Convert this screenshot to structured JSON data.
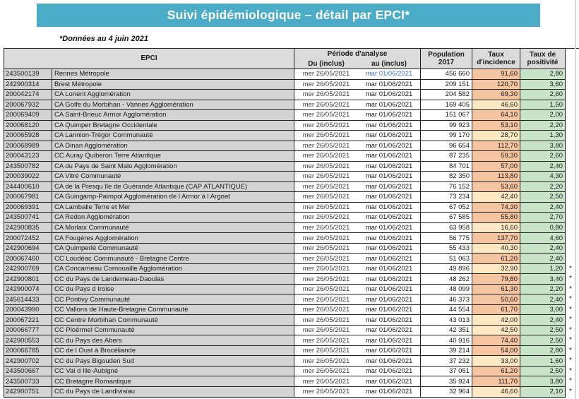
{
  "banner": {
    "title": "Suivi épidémiologique – détail par EPCI*"
  },
  "note": "*Données au 4 juin 2021",
  "colors": {
    "accent_teal": "#4AACC6",
    "header_bg": "#DBDBDB",
    "epci_cell_bg": "#D4D4D4",
    "positivite_green": "#C9E4C9",
    "date_blue": "#4472C4",
    "incidence": {
      "hi": "#F5C4A0",
      "lo": "#FCE9C4"
    }
  },
  "table": {
    "header": {
      "epci": "EPCI",
      "periode": "Période d'analyse",
      "du": "Du (inclus)",
      "au": "au (inclus)",
      "pop_l1": "Population",
      "pop_l2": "2017",
      "inc_l1": "Taux",
      "inc_l2": "d'incidence",
      "pos_l1": "Taux de",
      "pos_l2": "positivité"
    },
    "rows": [
      {
        "code": "243500139",
        "name": "Rennes Métropole",
        "du": "mer 26/05/2021",
        "au": "mar 01/06/2021",
        "pop": "456 660",
        "inc": "91,60",
        "pos": "2,80",
        "lvl": "hi",
        "star": "",
        "au_blue": true
      },
      {
        "code": "242900314",
        "name": "Brest Métropole",
        "du": "mer 26/05/2021",
        "au": "mar 01/06/2021",
        "pop": "209 151",
        "inc": "120,70",
        "pos": "3,60",
        "lvl": "hi",
        "star": ""
      },
      {
        "code": "200042174",
        "name": "CA Lorient Agglomération",
        "du": "mer 26/05/2021",
        "au": "mar 01/06/2021",
        "pop": "204 582",
        "inc": "69,30",
        "pos": "2,60",
        "lvl": "hi",
        "star": ""
      },
      {
        "code": "200067932",
        "name": "CA Golfe du Morbihan - Vannes Agglomération",
        "du": "mer 26/05/2021",
        "au": "mar 01/06/2021",
        "pop": "169 405",
        "inc": "46,60",
        "pos": "1,50",
        "lvl": "lo",
        "star": ""
      },
      {
        "code": "200069409",
        "name": "CA Saint-Brieuc Armor Agglomération",
        "du": "mer 26/05/2021",
        "au": "mar 01/06/2021",
        "pop": "151 067",
        "inc": "64,10",
        "pos": "2,00",
        "lvl": "hi",
        "star": ""
      },
      {
        "code": "200068120",
        "name": "CA Quimper Bretagne Occidentale",
        "du": "mer 26/05/2021",
        "au": "mar 01/06/2021",
        "pop": "99 923",
        "inc": "53,10",
        "pos": "2,20",
        "lvl": "hi",
        "star": ""
      },
      {
        "code": "200065928",
        "name": "CA Lannion-Trégor Communauté",
        "du": "mer 26/05/2021",
        "au": "mar 01/06/2021",
        "pop": "99 170",
        "inc": "28,70",
        "pos": "1,30",
        "lvl": "lo",
        "star": ""
      },
      {
        "code": "200068989",
        "name": "CA Dinan Agglomération",
        "du": "mer 26/05/2021",
        "au": "mar 01/06/2021",
        "pop": "96 654",
        "inc": "112,70",
        "pos": "3,80",
        "lvl": "hi",
        "star": ""
      },
      {
        "code": "200043123",
        "name": "CC Auray Quiberon Terre Atlantique",
        "du": "mer 26/05/2021",
        "au": "mar 01/06/2021",
        "pop": "87 235",
        "inc": "59,30",
        "pos": "2,60",
        "lvl": "hi",
        "star": ""
      },
      {
        "code": "243500782",
        "name": "CA du Pays de Saint Malo Agglomération",
        "du": "mer 26/05/2021",
        "au": "mar 01/06/2021",
        "pop": "84 701",
        "inc": "57,00",
        "pos": "2,40",
        "lvl": "hi",
        "star": ""
      },
      {
        "code": "200039022",
        "name": "CA Vitré Communauté",
        "du": "mer 26/05/2021",
        "au": "mar 01/06/2021",
        "pop": "82 350",
        "inc": "113,80",
        "pos": "4,30",
        "lvl": "hi",
        "star": ""
      },
      {
        "code": "244400610",
        "name": "CA de la Presqu île de Guérande Atlantique (CAP ATLANTIQUE)",
        "du": "mer 26/05/2021",
        "au": "mar 01/06/2021",
        "pop": "76 152",
        "inc": "53,60",
        "pos": "2,20",
        "lvl": "hi",
        "star": ""
      },
      {
        "code": "200067981",
        "name": "CA Guingamp-Paimpol Agglomération de l Armor à l Argoat",
        "du": "mer 26/05/2021",
        "au": "mar 01/06/2021",
        "pop": "73 234",
        "inc": "42,40",
        "pos": "2,50",
        "lvl": "lo",
        "star": ""
      },
      {
        "code": "200069391",
        "name": "CA Lamballe Terre et Mer",
        "du": "mer 26/05/2021",
        "au": "mar 01/06/2021",
        "pop": "67 052",
        "inc": "74,30",
        "pos": "2,40",
        "lvl": "hi",
        "star": ""
      },
      {
        "code": "243500741",
        "name": "CA Redon Agglomération",
        "du": "mer 26/05/2021",
        "au": "mar 01/06/2021",
        "pop": "67 585",
        "inc": "55,80",
        "pos": "2,70",
        "lvl": "hi",
        "star": ""
      },
      {
        "code": "242900835",
        "name": "CA Morlaix Communauté",
        "du": "mer 26/05/2021",
        "au": "mar 01/06/2021",
        "pop": "63 958",
        "inc": "16,60",
        "pos": "0,80",
        "lvl": "lo",
        "star": ""
      },
      {
        "code": "200072452",
        "name": "CA Fougères Agglomération",
        "du": "mer 26/05/2021",
        "au": "mar 01/06/2021",
        "pop": "56 775",
        "inc": "137,70",
        "pos": "4,60",
        "lvl": "hi",
        "star": ""
      },
      {
        "code": "242900694",
        "name": "CA Quimperlé Communauté",
        "du": "mer 26/05/2021",
        "au": "mar 01/06/2021",
        "pop": "55 433",
        "inc": "40,30",
        "pos": "2,40",
        "lvl": "lo",
        "star": ""
      },
      {
        "code": "200067460",
        "name": "CC Loudéac Communauté - Bretagne Centre",
        "du": "mer 26/05/2021",
        "au": "mar 01/06/2021",
        "pop": "51 063",
        "inc": "61,20",
        "pos": "2,40",
        "lvl": "hi",
        "star": ""
      },
      {
        "code": "242900769",
        "name": "CA Concarneau Cornouaille Agglomération",
        "du": "mer 26/05/2021",
        "au": "mar 01/06/2021",
        "pop": "49 896",
        "inc": "32,90",
        "pos": "1,20",
        "lvl": "lo",
        "star": "*"
      },
      {
        "code": "242900801",
        "name": "CC du Pays de Landerneau-Daoulas",
        "du": "mer 26/05/2021",
        "au": "mar 01/06/2021",
        "pop": "48 262",
        "inc": "79,80",
        "pos": "3,40",
        "lvl": "hi",
        "star": "*"
      },
      {
        "code": "242900074",
        "name": "CC du Pays d Iroise",
        "du": "mer 26/05/2021",
        "au": "mar 01/06/2021",
        "pop": "48 099",
        "inc": "61,30",
        "pos": "2,20",
        "lvl": "hi",
        "star": "*"
      },
      {
        "code": "245614433",
        "name": "CC Pontivy Communauté",
        "du": "mer 26/05/2021",
        "au": "mar 01/06/2021",
        "pop": "46 373",
        "inc": "50,60",
        "pos": "2,40",
        "lvl": "hi",
        "star": "*"
      },
      {
        "code": "200043990",
        "name": "CC Vallons de Haute-Bretagne Communauté",
        "du": "mer 26/05/2021",
        "au": "mar 01/06/2021",
        "pop": "44 554",
        "inc": "61,70",
        "pos": "3,00",
        "lvl": "hi",
        "star": "*"
      },
      {
        "code": "200067221",
        "name": "CC Centre Morbihan Communauté",
        "du": "mer 26/05/2021",
        "au": "mar 01/06/2021",
        "pop": "43 013",
        "inc": "42,00",
        "pos": "2,40",
        "lvl": "lo",
        "star": "*"
      },
      {
        "code": "200066777",
        "name": "CC Ploërmel Communauté",
        "du": "mer 26/05/2021",
        "au": "mar 01/06/2021",
        "pop": "42 351",
        "inc": "42,50",
        "pos": "2,50",
        "lvl": "lo",
        "star": "*"
      },
      {
        "code": "242900553",
        "name": "CC du Pays des Abers",
        "du": "mer 26/05/2021",
        "au": "mar 01/06/2021",
        "pop": "40 916",
        "inc": "74,40",
        "pos": "2,50",
        "lvl": "hi",
        "star": "*"
      },
      {
        "code": "200066785",
        "name": "CC de l Oust à Brocéliande",
        "du": "mer 26/05/2021",
        "au": "mar 01/06/2021",
        "pop": "39 214",
        "inc": "54,00",
        "pos": "2,80",
        "lvl": "hi",
        "star": "*"
      },
      {
        "code": "242900702",
        "name": "CC du Pays Bigouden Sud",
        "du": "mer 26/05/2021",
        "au": "mar 01/06/2021",
        "pop": "37 232",
        "inc": "33,00",
        "pos": "1,60",
        "lvl": "lo",
        "star": "*"
      },
      {
        "code": "243500667",
        "name": "CC Val d Ille-Aubigné",
        "du": "mer 26/05/2021",
        "au": "mar 01/06/2021",
        "pop": "37 051",
        "inc": "61,20",
        "pos": "2,50",
        "lvl": "hi",
        "star": "*"
      },
      {
        "code": "243500733",
        "name": "CC Bretagne Romantique",
        "du": "mer 26/05/2021",
        "au": "mar 01/06/2021",
        "pop": "35 924",
        "inc": "111,70",
        "pos": "3,80",
        "lvl": "hi",
        "star": "*"
      },
      {
        "code": "242900751",
        "name": "CC du Pays de Landivisiau",
        "du": "mer 26/05/2021",
        "au": "mar 01/06/2021",
        "pop": "32 964",
        "inc": "46,60",
        "pos": "2,10",
        "lvl": "lo",
        "star": "*"
      }
    ]
  }
}
